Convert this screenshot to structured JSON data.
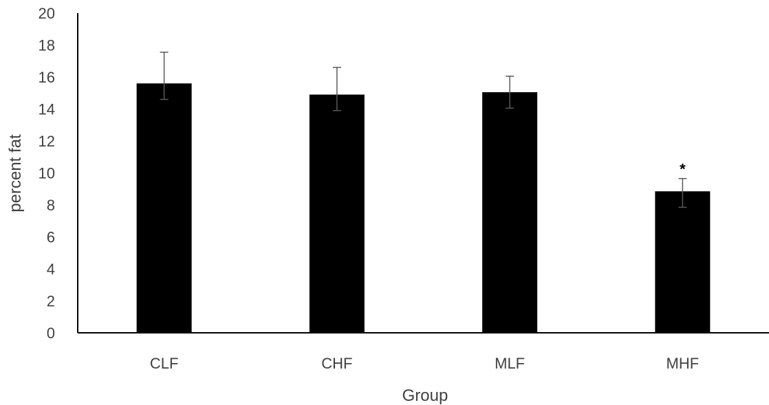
{
  "chart_data": {
    "type": "bar",
    "title": "",
    "xlabel": "Group",
    "ylabel": "percent  fat",
    "ylim": [
      0,
      20
    ],
    "y_ticks": [
      0,
      2,
      4,
      6,
      8,
      10,
      12,
      14,
      16,
      18,
      20
    ],
    "grid": false,
    "legend": "none",
    "bar_color": "#000000",
    "error_bar_color": "#595959",
    "categories": [
      "CLF",
      "CHF",
      "MLF",
      "MHF"
    ],
    "series": [
      {
        "values": [
          15.6,
          14.9,
          15.05,
          8.85
        ],
        "error_upper": [
          17.55,
          16.6,
          16.05,
          9.65
        ],
        "error_lower": [
          14.6,
          13.9,
          14.05,
          7.85
        ]
      }
    ],
    "annotations": [
      {
        "category": "MHF",
        "text": "*"
      }
    ]
  }
}
